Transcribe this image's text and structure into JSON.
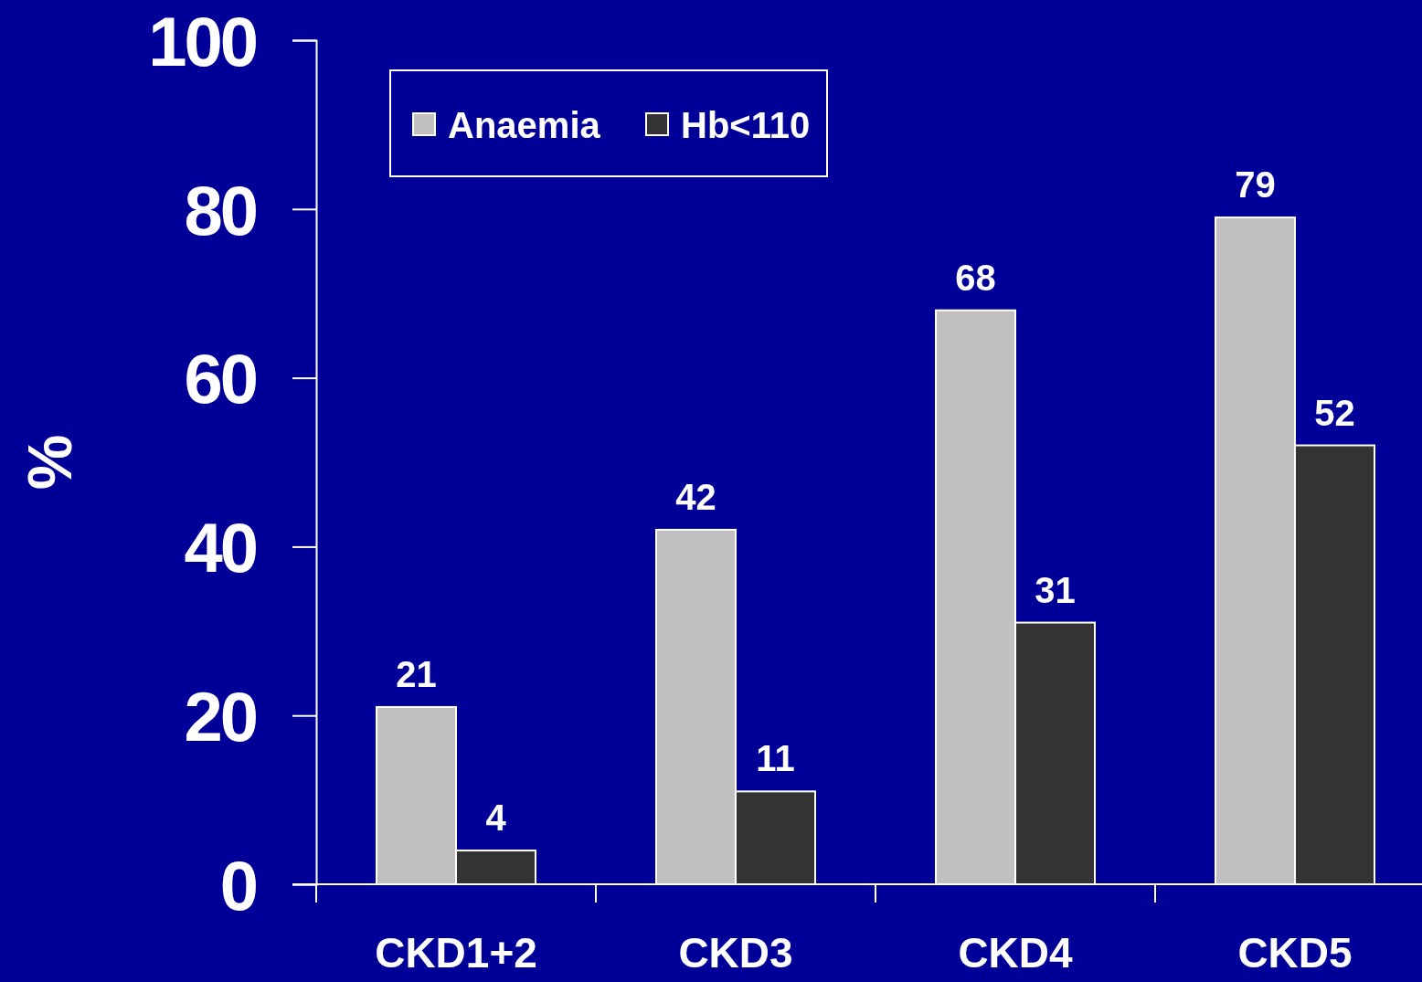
{
  "chart_data": {
    "type": "bar",
    "categories": [
      "CKD1+2",
      "CKD3",
      "CKD4",
      "CKD5"
    ],
    "ylabel": "%",
    "ylim": [
      0,
      100
    ],
    "yticks": [
      0,
      20,
      40,
      60,
      80,
      100
    ],
    "legend": "top left",
    "data_labels": true,
    "series": [
      {
        "name": "Anaemia",
        "color": "#c0c0c0",
        "values": [
          21,
          42,
          68,
          79
        ]
      },
      {
        "name": "Hb<110",
        "color": "#333333",
        "values": [
          4,
          11,
          31,
          52
        ]
      }
    ]
  }
}
